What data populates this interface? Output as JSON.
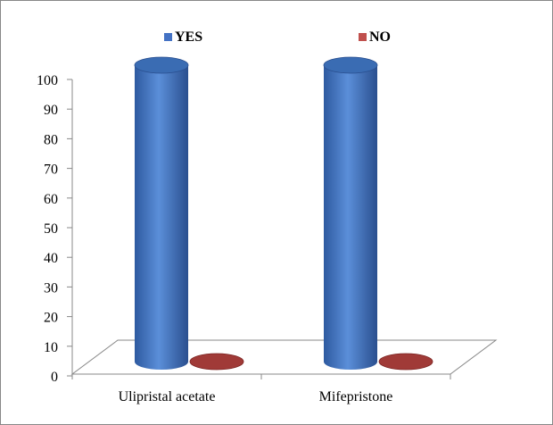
{
  "chart_data": {
    "type": "bar",
    "style": "3d-cylinder",
    "categories": [
      "Ulipristal acetate",
      "Mifepristone"
    ],
    "series": [
      {
        "name": "YES",
        "values": [
          100,
          100
        ],
        "color": "#4472C4"
      },
      {
        "name": "NO",
        "values": [
          0,
          0
        ],
        "color": "#C0504D"
      }
    ],
    "ylim": [
      0,
      100
    ],
    "yticks": [
      "0",
      "10",
      "20",
      "30",
      "40",
      "50",
      "60",
      "70",
      "80",
      "90",
      "100"
    ],
    "legend_position": "top",
    "grid": false
  }
}
